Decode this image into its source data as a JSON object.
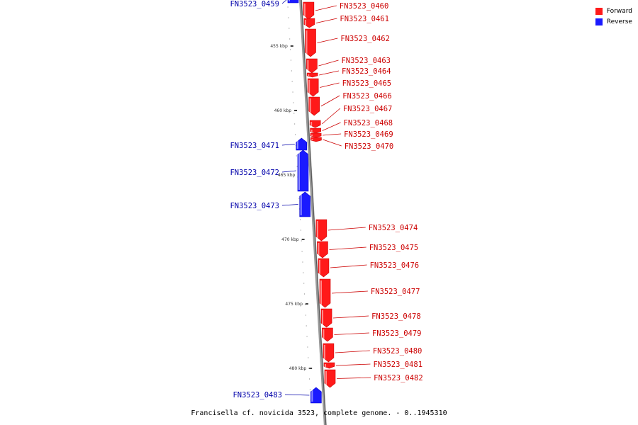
{
  "caption": "Francisella cf. novicida 3523, complete genome. - 0..1945310",
  "legend": [
    {
      "label": "Forward",
      "color": "#ff1a1a"
    },
    {
      "label": "Reverse",
      "color": "#1a1aff"
    }
  ],
  "colors": {
    "forward": "#ff1a1a",
    "reverse": "#1a1aff",
    "forward_label": "#cc0000",
    "reverse_label": "#0000aa",
    "backbone": "#888888"
  },
  "scale_labels": [
    "455 kbp",
    "460 kbp",
    "465 kbp",
    "470 kbp",
    "475 kbp",
    "480 kbp"
  ],
  "genes": [
    {
      "name": "FN3523_0459",
      "strand": "reverse"
    },
    {
      "name": "FN3523_0460",
      "strand": "forward"
    },
    {
      "name": "FN3523_0461",
      "strand": "forward"
    },
    {
      "name": "FN3523_0462",
      "strand": "forward"
    },
    {
      "name": "FN3523_0463",
      "strand": "forward"
    },
    {
      "name": "FN3523_0464",
      "strand": "forward"
    },
    {
      "name": "FN3523_0465",
      "strand": "forward"
    },
    {
      "name": "FN3523_0466",
      "strand": "forward"
    },
    {
      "name": "FN3523_0467",
      "strand": "forward"
    },
    {
      "name": "FN3523_0468",
      "strand": "forward"
    },
    {
      "name": "FN3523_0469",
      "strand": "forward"
    },
    {
      "name": "FN3523_0470",
      "strand": "forward"
    },
    {
      "name": "FN3523_0471",
      "strand": "reverse"
    },
    {
      "name": "FN3523_0472",
      "strand": "reverse"
    },
    {
      "name": "FN3523_0473",
      "strand": "reverse"
    },
    {
      "name": "FN3523_0474",
      "strand": "forward"
    },
    {
      "name": "FN3523_0475",
      "strand": "forward"
    },
    {
      "name": "FN3523_0476",
      "strand": "forward"
    },
    {
      "name": "FN3523_0477",
      "strand": "forward"
    },
    {
      "name": "FN3523_0478",
      "strand": "forward"
    },
    {
      "name": "FN3523_0479",
      "strand": "forward"
    },
    {
      "name": "FN3523_0480",
      "strand": "forward"
    },
    {
      "name": "FN3523_0481",
      "strand": "forward"
    },
    {
      "name": "FN3523_0482",
      "strand": "forward"
    },
    {
      "name": "FN3523_0483",
      "strand": "reverse"
    }
  ]
}
